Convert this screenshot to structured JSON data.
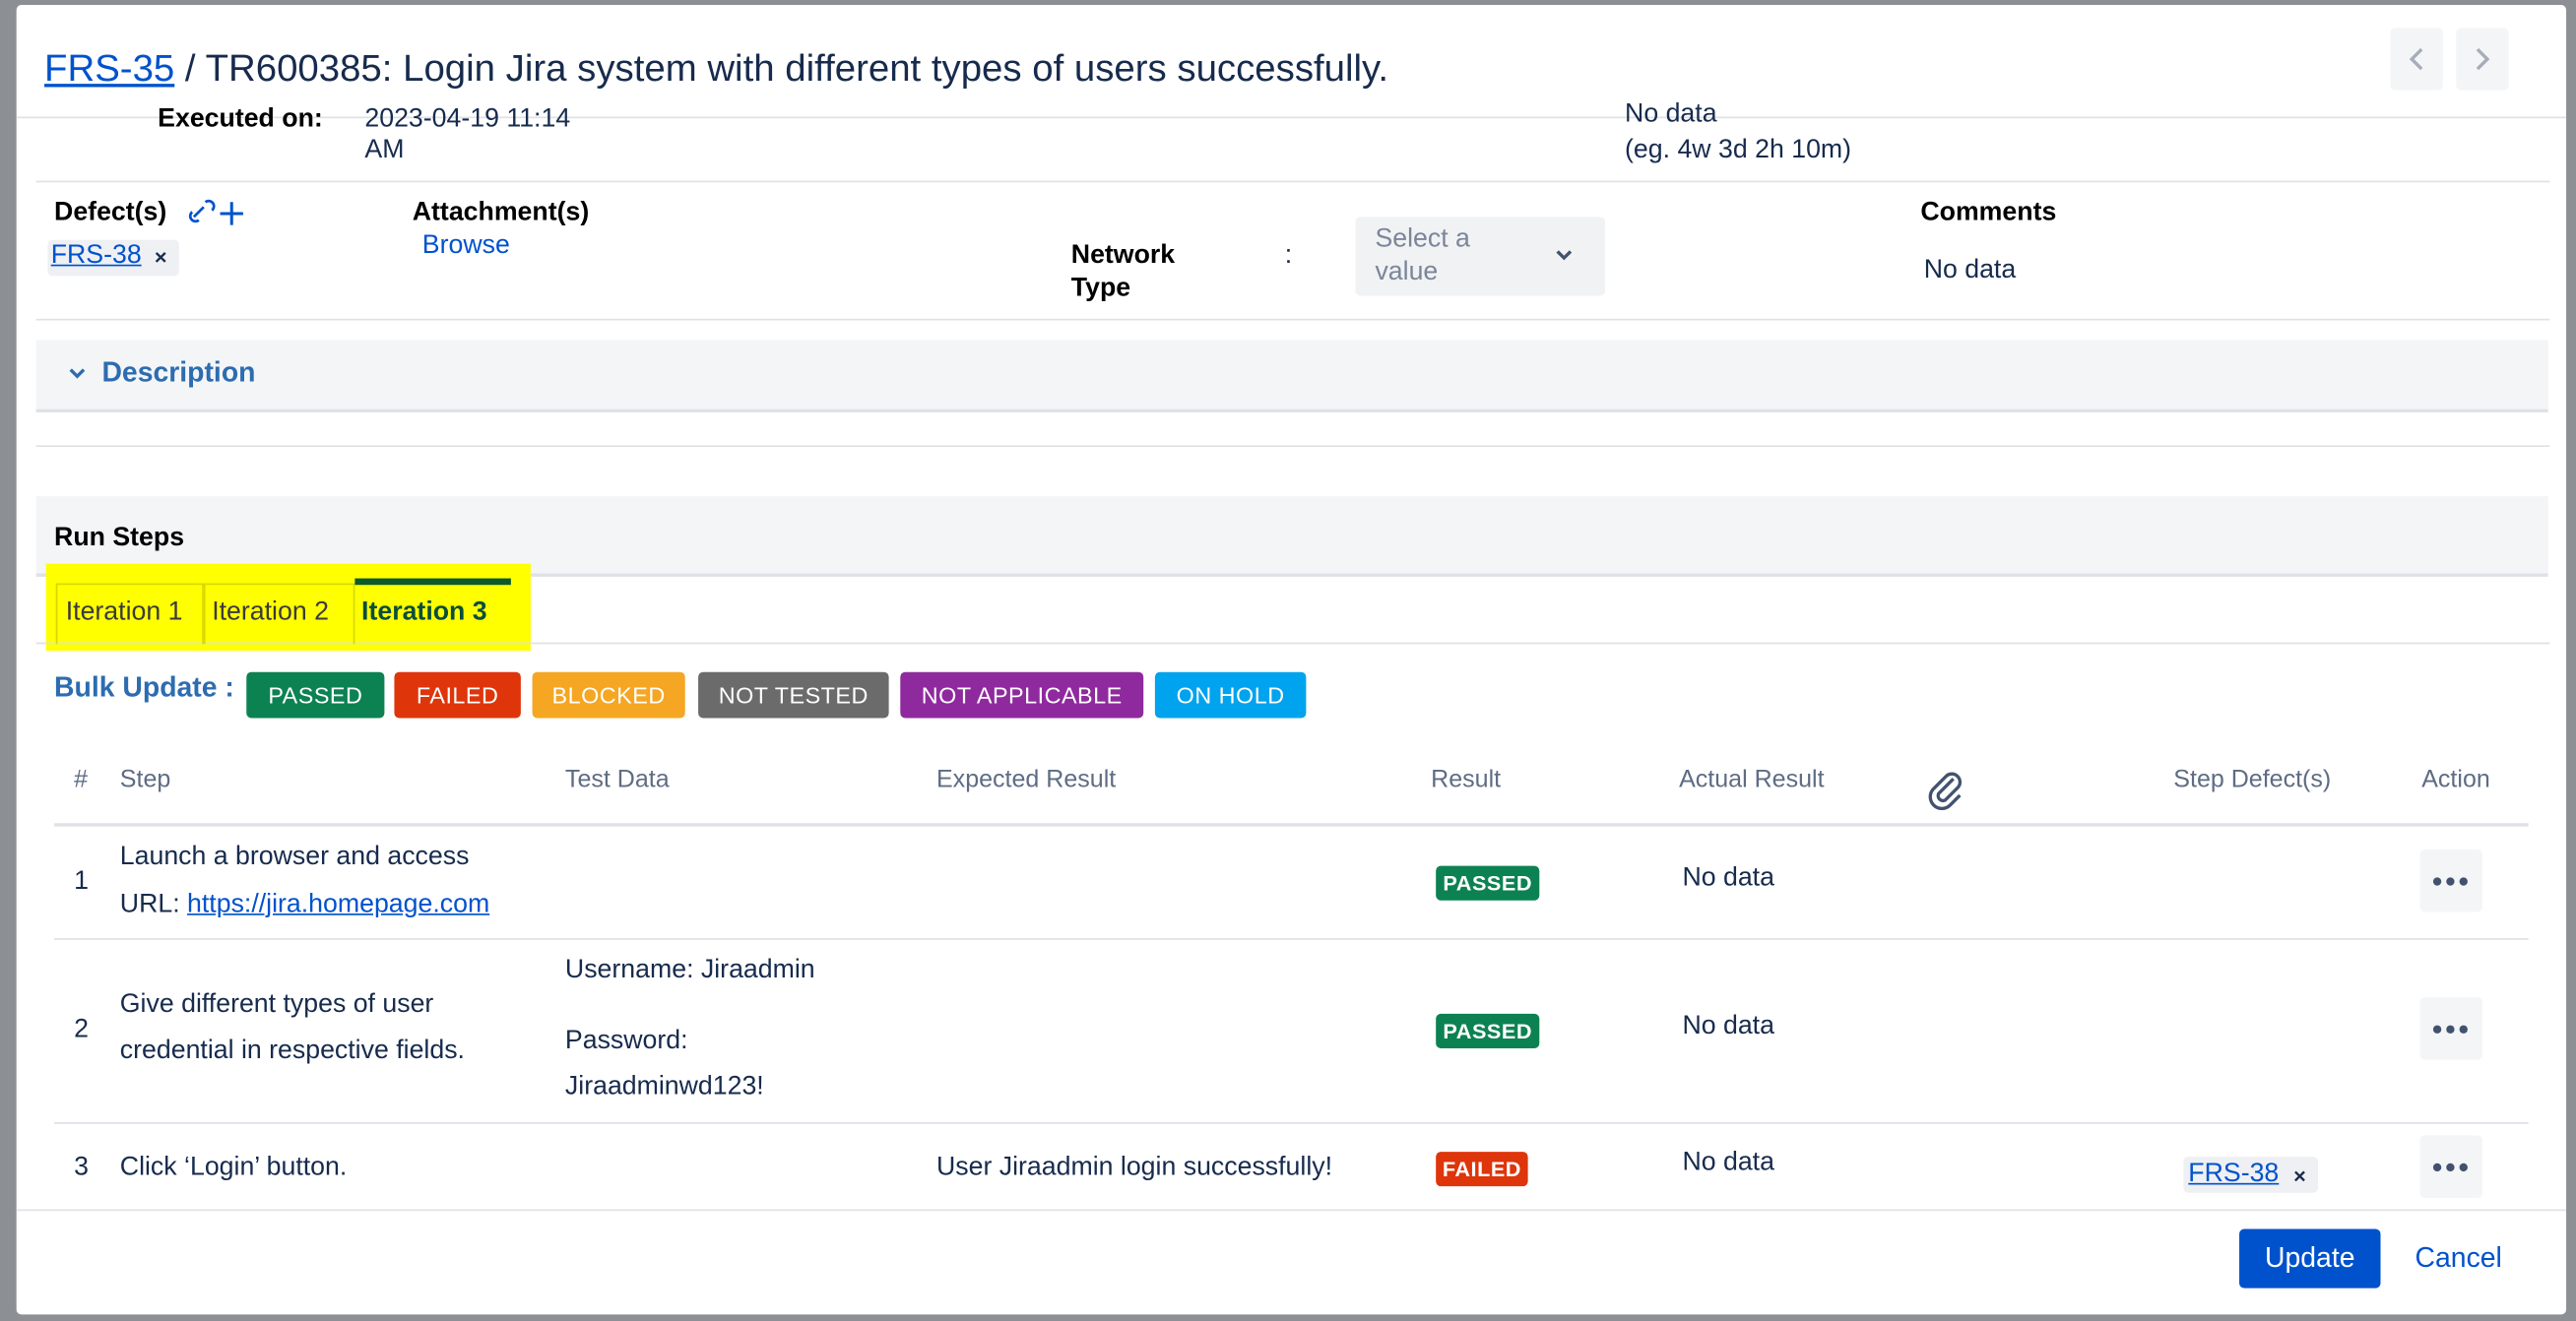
{
  "header": {
    "issue_key": "FRS-35",
    "separator": "/",
    "title": "TR600385: Login Jira system with different types of users successfully."
  },
  "top_fields": {
    "executed_on_label": "Executed on:",
    "executed_on_value": "2023-04-19 11:14",
    "executed_on_value_2": "AM",
    "estimate_value": "No data",
    "estimate_hint": "(eg. 4w 3d 2h 10m)"
  },
  "fields": {
    "defects_label": "Defect(s)",
    "defect": "FRS-38",
    "attachments_label": "Attachment(s)",
    "browse": "Browse",
    "network_label": "Network",
    "network_label_2": "Type",
    "network_sep": ":",
    "network_placeholder": "Select a",
    "network_placeholder_2": "value",
    "comments_label": "Comments",
    "comments_value": "No data"
  },
  "description": "Description",
  "run_steps": {
    "title": "Run Steps",
    "tabs": [
      "Iteration 1",
      "Iteration 2",
      "Iteration 3"
    ],
    "bulk_label": "Bulk Update :",
    "bulk_buttons": [
      "PASSED",
      "FAILED",
      "BLOCKED",
      "NOT TESTED",
      "NOT APPLICABLE",
      "ON HOLD"
    ]
  },
  "table": {
    "columns": [
      "#",
      "Step",
      "Test Data",
      "Expected Result",
      "Result",
      "Actual Result",
      "Step Defect(s)",
      "Action"
    ],
    "rows": [
      {
        "number": 1,
        "step": [
          "Launch a browser and access",
          "URL: "
        ],
        "step_link": "https://jira.homepage.com",
        "result": "PASSED",
        "actual": "No data"
      },
      {
        "number": 2,
        "step": [
          "Give different types of user",
          "credential in respective fields."
        ],
        "test_data": [
          "Username: Jiraadmin",
          "Password:",
          "Jiraadminwd123!"
        ],
        "result": "PASSED",
        "actual": "No data"
      },
      {
        "number": 3,
        "step": [
          "Click ‘Login’ button."
        ],
        "expected": "User Jiraadmin login successfully!",
        "result": "FAILED",
        "actual": "No data",
        "defect": "FRS-38"
      }
    ]
  },
  "footer": {
    "update": "Update",
    "cancel": "Cancel"
  }
}
